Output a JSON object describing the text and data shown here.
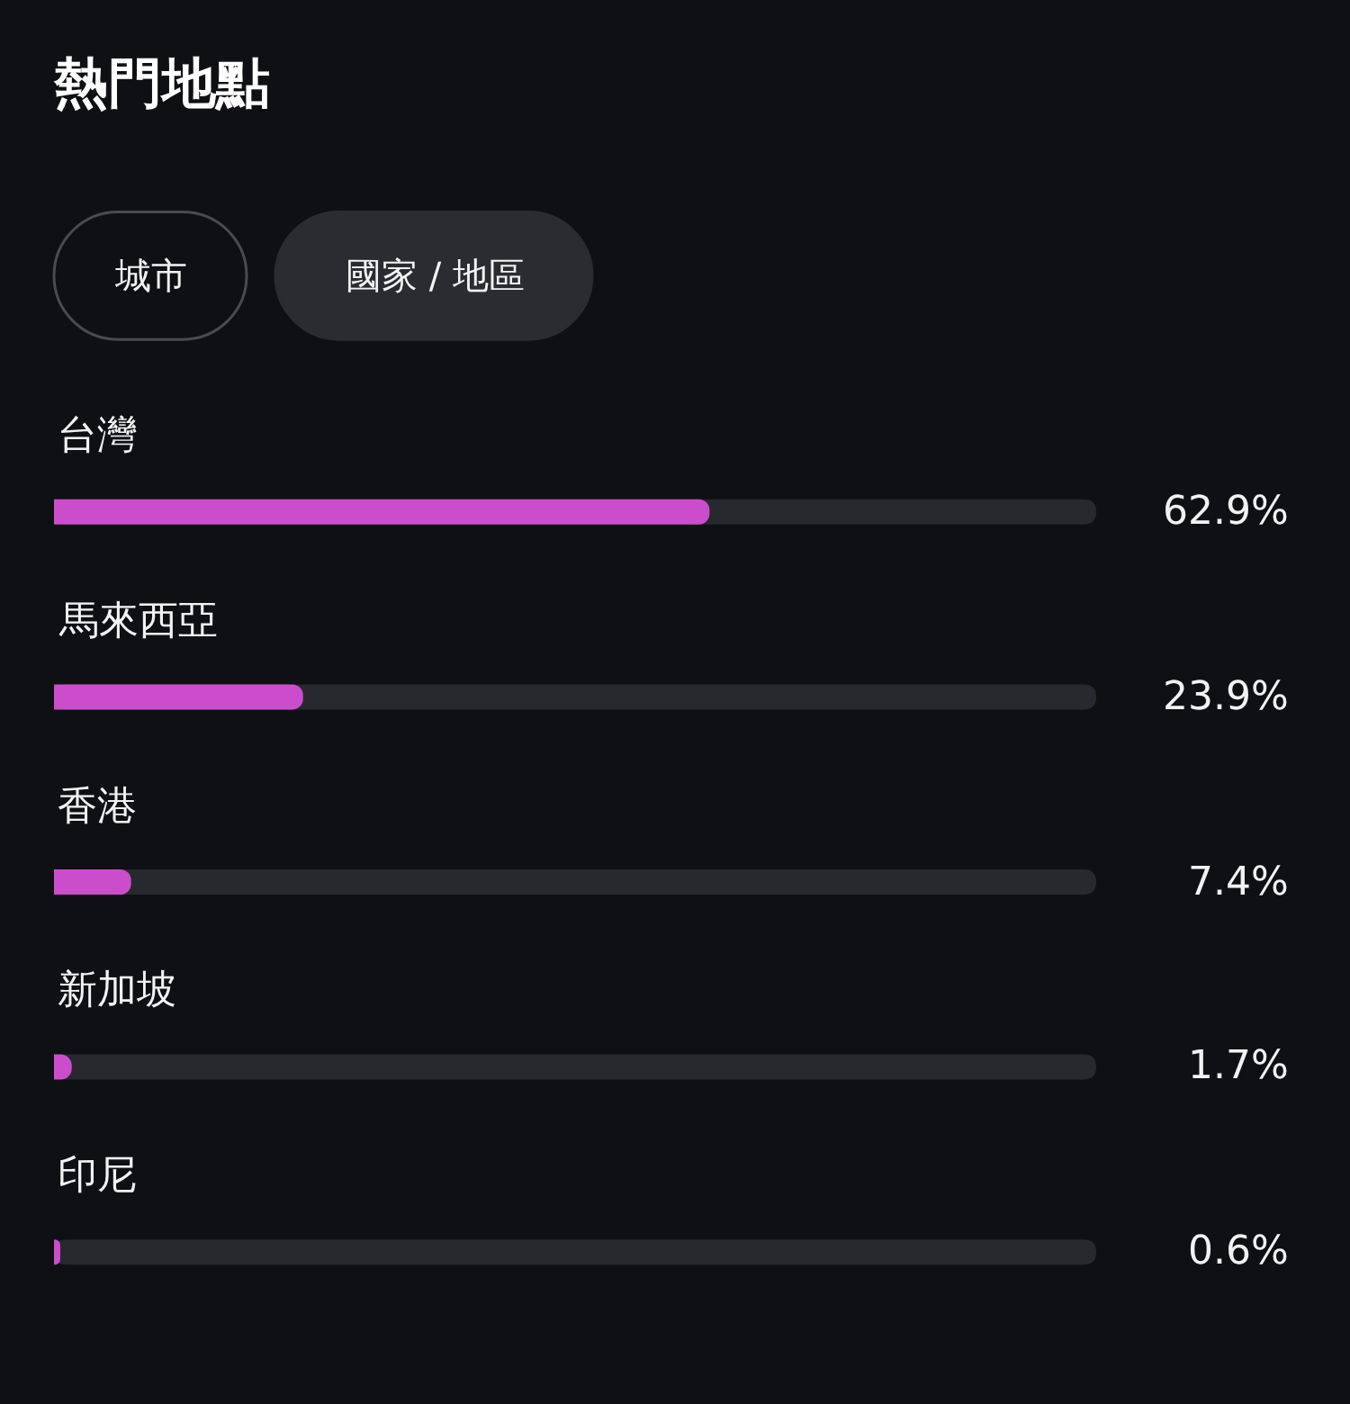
{
  "chart_data": {
    "type": "bar",
    "orientation": "horizontal",
    "title": "熱門地點",
    "annotations": [
      "城市",
      "國家 / 地區"
    ],
    "categories": [
      "台灣",
      "馬來西亞",
      "香港",
      "新加坡",
      "印尼"
    ],
    "values": [
      62.9,
      23.9,
      7.4,
      1.7,
      0.6
    ],
    "value_labels": [
      "62.9%",
      "23.9%",
      "7.4%",
      "1.7%",
      "0.6%"
    ],
    "color": "#cc4dcc",
    "xlim": [
      0,
      100
    ],
    "tick_labels": false,
    "grid": false
  }
}
